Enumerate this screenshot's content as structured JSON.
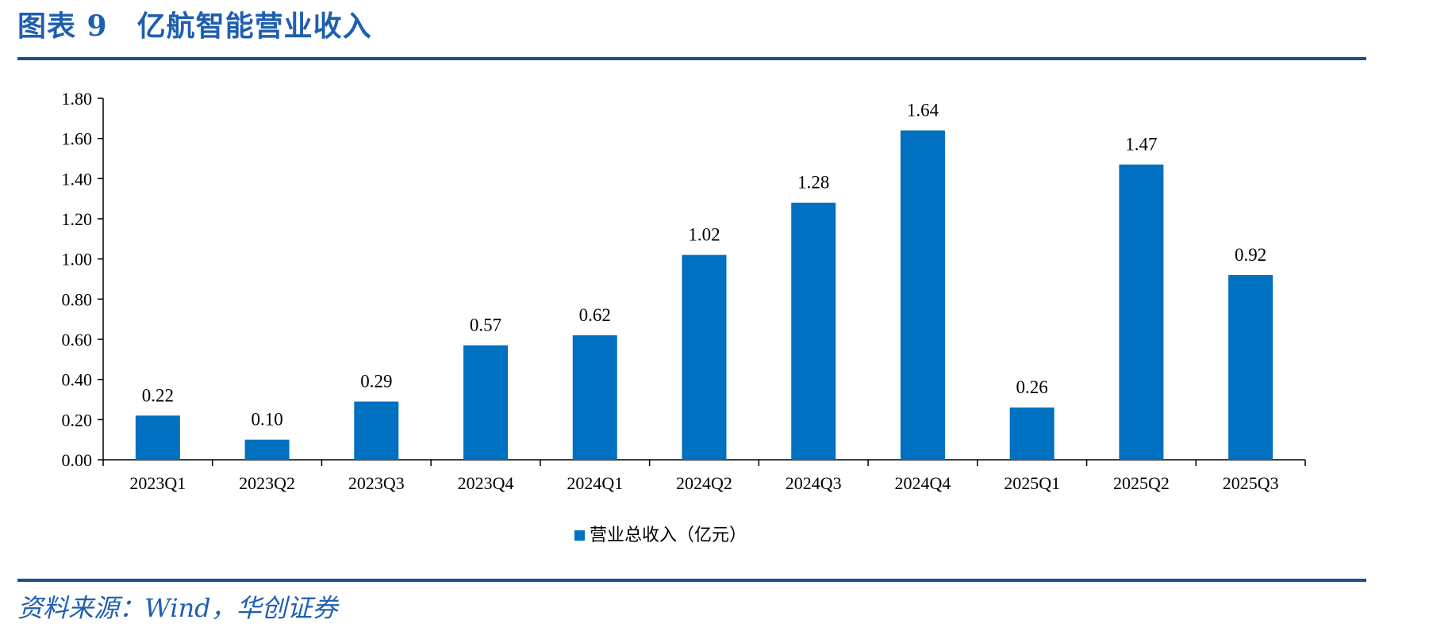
{
  "header": {
    "title": "图表 9　亿航智能营业收入"
  },
  "footer": {
    "source": "资料来源：Wind，华创证券"
  },
  "colors": {
    "bar": "#0070c0",
    "accent": "#1f4e8c",
    "text": "#000000"
  },
  "chart_data": {
    "type": "bar",
    "title": "",
    "xlabel": "",
    "ylabel": "",
    "ylim": [
      0,
      1.8
    ],
    "y_ticks": [
      "0.00",
      "0.20",
      "0.40",
      "0.60",
      "0.80",
      "1.00",
      "1.20",
      "1.40",
      "1.60",
      "1.80"
    ],
    "categories": [
      "2023Q1",
      "2023Q2",
      "2023Q3",
      "2023Q4",
      "2024Q1",
      "2024Q2",
      "2024Q3",
      "2024Q4",
      "2025Q1",
      "2025Q2",
      "2025Q3"
    ],
    "series": [
      {
        "name": "营业总收入（亿元）",
        "values": [
          0.22,
          0.1,
          0.29,
          0.57,
          0.62,
          1.02,
          1.28,
          1.64,
          0.26,
          1.47,
          0.92
        ]
      }
    ],
    "data_labels": true,
    "grid": false,
    "legend_position": "bottom"
  }
}
